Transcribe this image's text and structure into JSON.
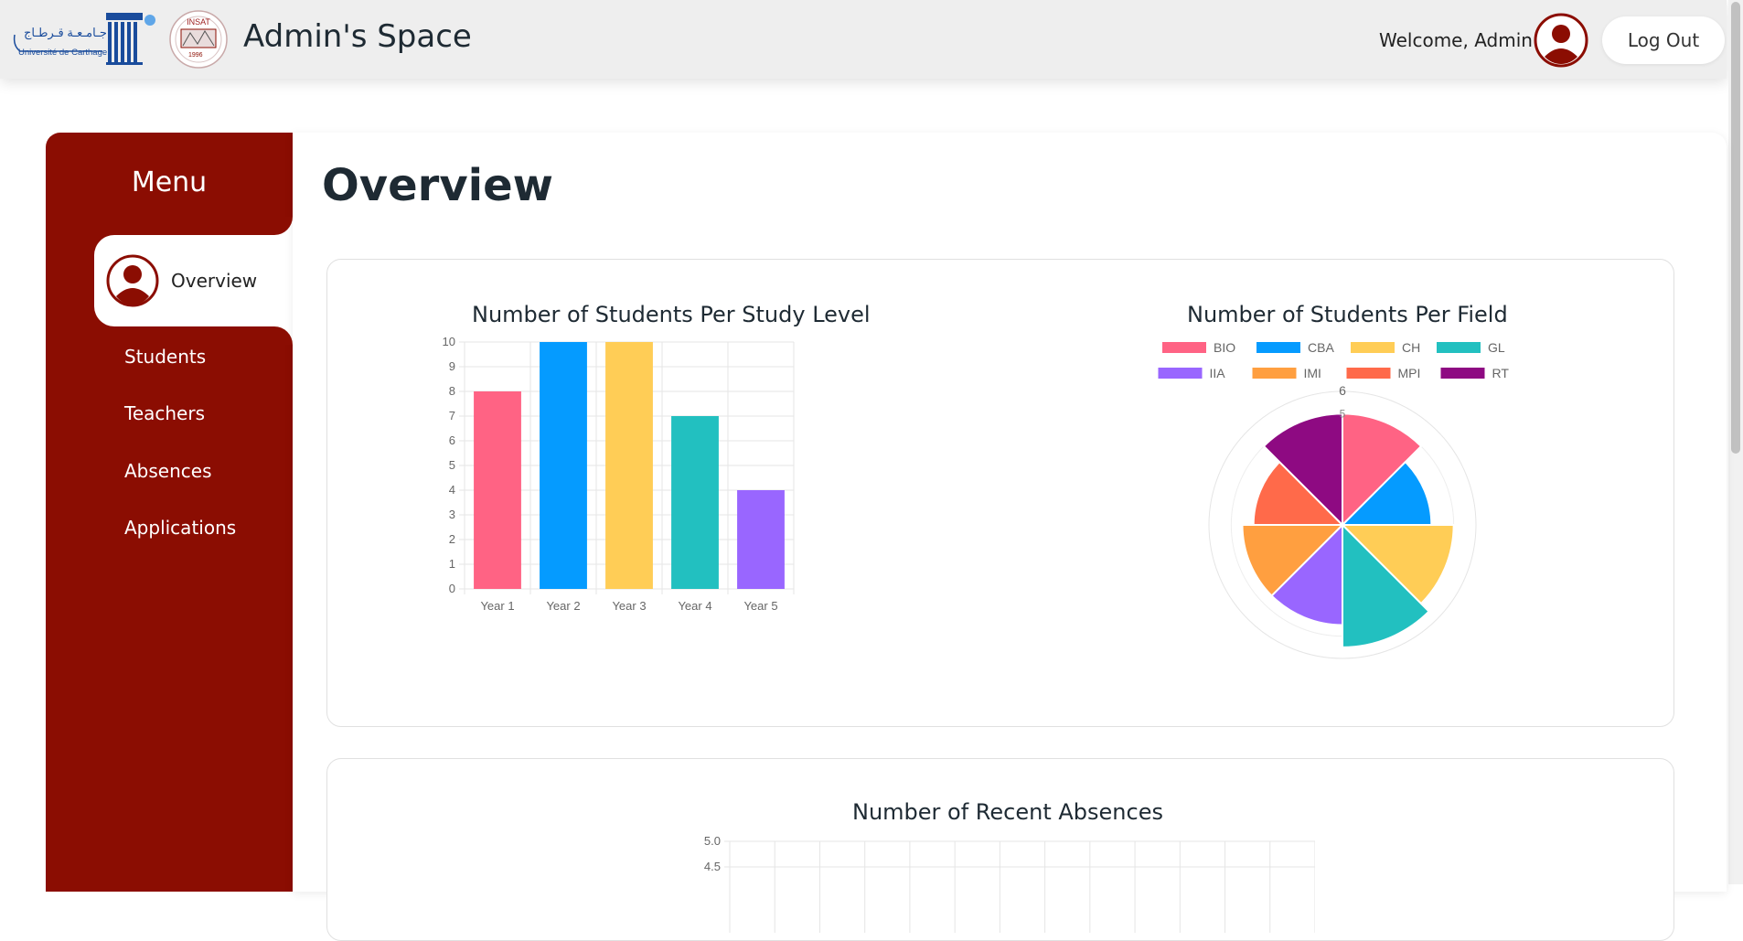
{
  "header": {
    "uc_logo_text_ar": "جـامـعـة قـرطـاج",
    "uc_logo_text_fr": "Université de Carthage",
    "insat_logo_text": "INSAT",
    "insat_logo_year": "1996",
    "title": "Admin's Space",
    "welcome": "Welcome, Admin",
    "logout_label": "Log Out"
  },
  "sidebar": {
    "menu_title": "Menu",
    "active_item": "Overview",
    "items": [
      "Students",
      "Teachers",
      "Absences",
      "Applications"
    ]
  },
  "main": {
    "page_title": "Overview"
  },
  "colors": {
    "brand": "#8b0d02",
    "pink": "#ff6384",
    "blue": "#059bff",
    "yellow": "#ffcd56",
    "teal": "#22c0c0",
    "purple": "#9966ff",
    "orange": "#ff9f40",
    "coral": "#ff6a4a",
    "magenta": "#8e0a82"
  },
  "chart_data": [
    {
      "type": "bar",
      "title": "Number of Students Per Study Level",
      "categories": [
        "Year 1",
        "Year 2",
        "Year 3",
        "Year 4",
        "Year 5"
      ],
      "values": [
        8,
        10,
        10,
        7,
        4
      ],
      "colors": [
        "#ff6384",
        "#059bff",
        "#ffcd56",
        "#22c0c0",
        "#9966ff"
      ],
      "ylim": [
        0,
        10
      ],
      "yticks": [
        "0",
        "1",
        "2",
        "3",
        "4",
        "5",
        "6",
        "7",
        "8",
        "9",
        "10"
      ],
      "grid": true
    },
    {
      "type": "polarArea",
      "title": "Number of Students Per Field",
      "categories": [
        "BIO",
        "CBA",
        "CH",
        "GL",
        "IIA",
        "IMI",
        "MPI",
        "RT"
      ],
      "values": [
        5,
        4,
        5,
        5.5,
        4.5,
        4.5,
        4,
        5
      ],
      "colors": [
        "#ff6384",
        "#059bff",
        "#ffcd56",
        "#22c0c0",
        "#9966ff",
        "#ff9f40",
        "#ff6a4a",
        "#8e0a82"
      ],
      "rmax": 6,
      "visible_ticks": [
        "6",
        "5"
      ],
      "legend": "top"
    },
    {
      "type": "line",
      "title": "Number of Recent Absences",
      "yticks_visible": [
        "5.0",
        "4.5"
      ],
      "grid": true
    }
  ]
}
